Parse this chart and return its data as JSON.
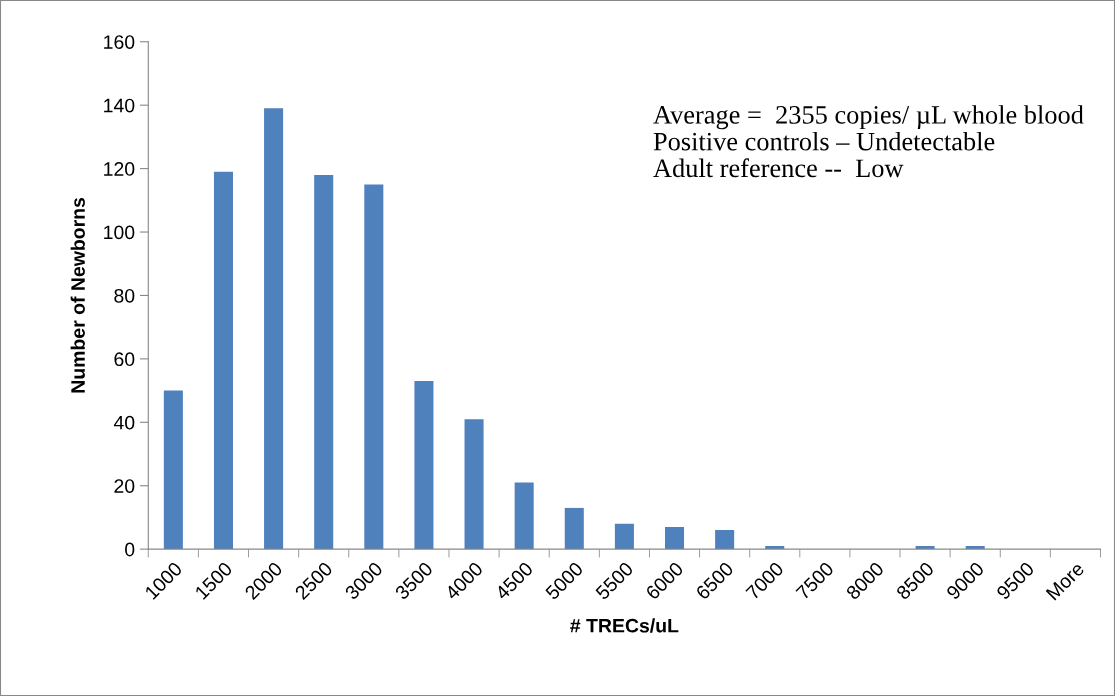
{
  "chart_data": {
    "type": "bar",
    "xlabel": "# TRECs/uL",
    "ylabel": "Number of Newborns",
    "categories": [
      "1000",
      "1500",
      "2000",
      "2500",
      "3000",
      "3500",
      "4000",
      "4500",
      "5000",
      "5500",
      "6000",
      "6500",
      "7000",
      "7500",
      "8000",
      "8500",
      "9000",
      "9500",
      "More"
    ],
    "series": [
      {
        "color": "#4f81bd",
        "values": [
          50,
          119,
          139,
          118,
          115,
          53,
          41,
          21,
          13,
          8,
          7,
          6,
          1,
          0,
          0,
          1,
          1,
          0,
          0
        ]
      }
    ],
    "ylim": [
      0,
      160
    ],
    "yticks": [
      0,
      20,
      40,
      60,
      80,
      100,
      120,
      140,
      160
    ],
    "grid": false,
    "legend": false,
    "annotations": [
      "Average =  2355 copies/ µL whole blood",
      "Positive controls – Undetectable",
      "Adult reference --  Low"
    ]
  }
}
